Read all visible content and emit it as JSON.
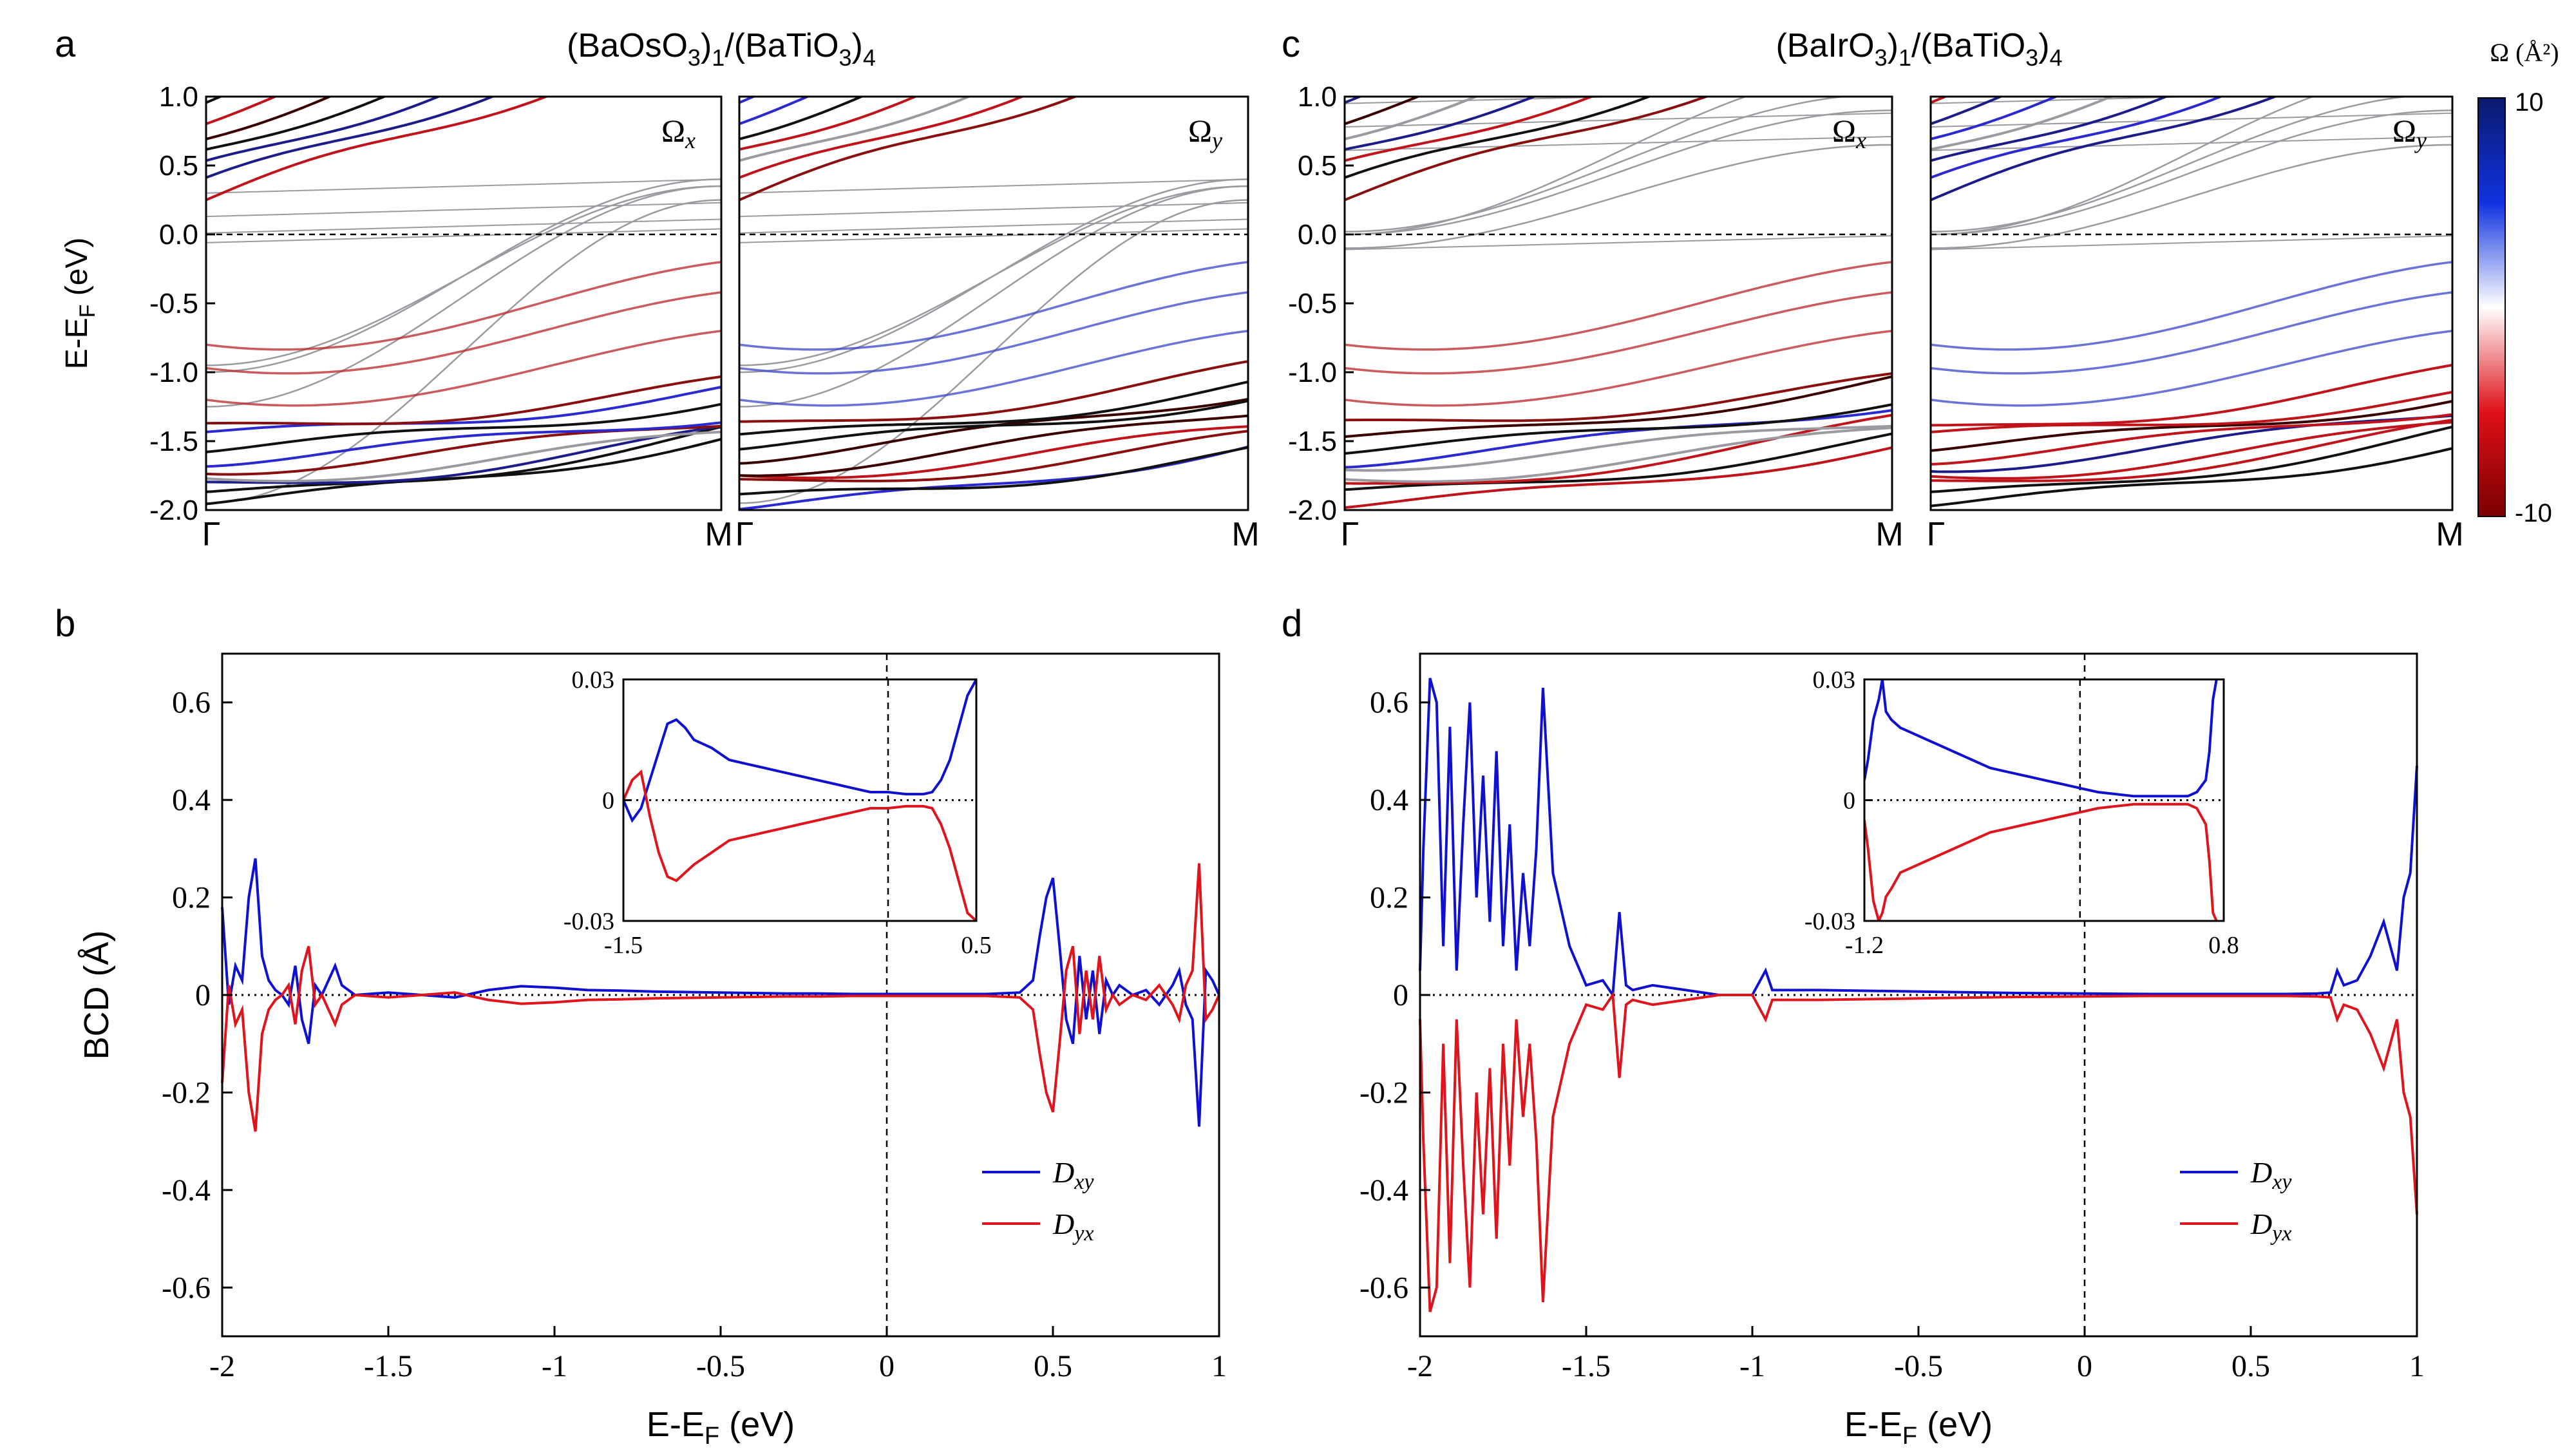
{
  "figure": {
    "panel_labels": [
      "a",
      "b",
      "c",
      "d"
    ],
    "title_a": {
      "base": "(BaOsO",
      "sub1": "3",
      "mid": ")",
      "sub2": "1",
      "rest": "/(BaTiO",
      "sub3": "3",
      "end": ")",
      "sub4": "4"
    },
    "title_c": {
      "base": "(BaIrO",
      "sub1": "3",
      "mid": ")",
      "sub2": "1",
      "rest": "/(BaTiO",
      "sub3": "3",
      "end": ")",
      "sub4": "4"
    },
    "colorbar": {
      "title": "Ω (Å²)",
      "max_label": "10",
      "min_label": "-10",
      "colors": [
        "#0b1a6e",
        "#1033e0",
        "#ffffff",
        "#e01018",
        "#7a0000"
      ]
    }
  },
  "chart_data": [
    {
      "id": "a-left",
      "type": "line",
      "panel": "a",
      "ylabel": "E-EF (eV)",
      "ylabel_main": "E-E",
      "ylabel_sub": "F",
      "ylabel_tail": " (eV)",
      "xticks": [
        "Γ",
        "M"
      ],
      "ylim": [
        -2.0,
        1.0
      ],
      "yticks": [
        1.0,
        0.5,
        0.0,
        -0.5,
        -1.0,
        -1.5,
        -2.0
      ],
      "ytick_labels": [
        "1.0",
        "0.5",
        "0.0",
        "-0.5",
        "-1.0",
        "-1.5",
        "-2.0"
      ],
      "annotation_main": "Ω",
      "annotation_sub": "x",
      "fermi_level": 0.0
    },
    {
      "id": "a-right",
      "type": "line",
      "panel": "a",
      "xticks": [
        "Γ",
        "M"
      ],
      "ylim": [
        -2.0,
        1.0
      ],
      "annotation_main": "Ω",
      "annotation_sub": "y",
      "fermi_level": 0.0
    },
    {
      "id": "c-left",
      "type": "line",
      "panel": "c",
      "xticks": [
        "Γ",
        "M"
      ],
      "ylim": [
        -2.0,
        1.0
      ],
      "yticks": [
        1.0,
        0.5,
        0.0,
        -0.5,
        -1.0,
        -1.5,
        -2.0
      ],
      "ytick_labels": [
        "1.0",
        "0.5",
        "0.0",
        "-0.5",
        "-1.0",
        "-1.5",
        "-2.0"
      ],
      "annotation_main": "Ω",
      "annotation_sub": "x",
      "fermi_level": 0.0
    },
    {
      "id": "c-right",
      "type": "line",
      "panel": "c",
      "xticks": [
        "Γ",
        "M"
      ],
      "ylim": [
        -2.0,
        1.0
      ],
      "annotation_main": "Ω",
      "annotation_sub": "y",
      "fermi_level": 0.0
    },
    {
      "id": "b",
      "type": "line",
      "panel": "b",
      "xlabel_main": "E-E",
      "xlabel_sub": "F",
      "xlabel_tail": " (eV)",
      "ylabel": "BCD (Å)",
      "xlim": [
        -2,
        1
      ],
      "ylim": [
        -0.7,
        0.7
      ],
      "xticks": [
        -2,
        -1.5,
        -1,
        -0.5,
        0,
        0.5,
        1
      ],
      "xtick_labels": [
        "-2",
        "-1.5",
        "-1",
        "-0.5",
        "0",
        "0.5",
        "1"
      ],
      "yticks": [
        0.6,
        0.4,
        0.2,
        0,
        -0.2,
        -0.4,
        -0.6
      ],
      "ytick_labels": [
        "0.6",
        "0.4",
        "0.2",
        "0",
        "-0.2",
        "-0.4",
        "-0.6"
      ],
      "legend": [
        {
          "main": "D",
          "sub": "xy",
          "color": "#1010d0"
        },
        {
          "main": "D",
          "sub": "yx",
          "color": "#e0141c"
        }
      ],
      "series": [
        {
          "name": "Dxy",
          "color": "#1010d0",
          "x": [
            -2.0,
            -1.98,
            -1.96,
            -1.94,
            -1.92,
            -1.9,
            -1.88,
            -1.86,
            -1.84,
            -1.82,
            -1.8,
            -1.78,
            -1.76,
            -1.74,
            -1.72,
            -1.7,
            -1.68,
            -1.66,
            -1.64,
            -1.6,
            -1.5,
            -1.4,
            -1.3,
            -1.2,
            -1.1,
            -1.0,
            -0.9,
            -0.8,
            -0.7,
            -0.6,
            -0.5,
            -0.4,
            -0.3,
            -0.2,
            -0.1,
            0.0,
            0.1,
            0.2,
            0.3,
            0.4,
            0.44,
            0.46,
            0.48,
            0.5,
            0.52,
            0.54,
            0.56,
            0.58,
            0.6,
            0.62,
            0.64,
            0.66,
            0.68,
            0.7,
            0.74,
            0.78,
            0.82,
            0.86,
            0.88,
            0.9,
            0.92,
            0.94,
            0.96,
            0.98,
            1.0
          ],
          "y": [
            0.18,
            -0.02,
            0.06,
            0.03,
            0.2,
            0.28,
            0.08,
            0.03,
            0.01,
            0.0,
            -0.02,
            0.06,
            -0.05,
            -0.1,
            0.02,
            0.0,
            0.03,
            0.06,
            0.02,
            0.0,
            0.005,
            0.0,
            -0.005,
            0.01,
            0.018,
            0.015,
            0.01,
            0.009,
            0.007,
            0.006,
            0.005,
            0.004,
            0.003,
            0.003,
            0.002,
            0.002,
            0.002,
            0.002,
            0.002,
            0.005,
            0.03,
            0.12,
            0.2,
            0.24,
            0.1,
            -0.05,
            -0.1,
            0.08,
            -0.05,
            0.05,
            -0.08,
            0.03,
            0.0,
            0.02,
            0.0,
            0.01,
            -0.02,
            0.02,
            0.05,
            -0.02,
            -0.05,
            -0.27,
            0.05,
            0.03,
            0.0
          ]
        },
        {
          "name": "Dyx",
          "color": "#e0141c",
          "x": [
            -2.0,
            -1.98,
            -1.96,
            -1.94,
            -1.92,
            -1.9,
            -1.88,
            -1.86,
            -1.84,
            -1.82,
            -1.8,
            -1.78,
            -1.76,
            -1.74,
            -1.72,
            -1.7,
            -1.68,
            -1.66,
            -1.64,
            -1.6,
            -1.5,
            -1.4,
            -1.3,
            -1.2,
            -1.1,
            -1.0,
            -0.9,
            -0.8,
            -0.7,
            -0.6,
            -0.5,
            -0.4,
            -0.3,
            -0.2,
            -0.1,
            0.0,
            0.1,
            0.2,
            0.3,
            0.4,
            0.44,
            0.46,
            0.48,
            0.5,
            0.52,
            0.54,
            0.56,
            0.58,
            0.6,
            0.62,
            0.64,
            0.66,
            0.68,
            0.7,
            0.74,
            0.78,
            0.82,
            0.86,
            0.88,
            0.9,
            0.92,
            0.94,
            0.96,
            0.98,
            1.0
          ],
          "y": [
            -0.18,
            0.02,
            -0.06,
            -0.03,
            -0.2,
            -0.28,
            -0.08,
            -0.03,
            -0.01,
            0.0,
            0.02,
            -0.06,
            0.05,
            0.1,
            -0.02,
            0.0,
            -0.03,
            -0.06,
            -0.02,
            0.0,
            -0.005,
            0.0,
            0.005,
            -0.01,
            -0.018,
            -0.015,
            -0.01,
            -0.009,
            -0.007,
            -0.006,
            -0.005,
            -0.004,
            -0.003,
            -0.003,
            -0.002,
            -0.002,
            -0.002,
            -0.002,
            -0.002,
            -0.005,
            -0.03,
            -0.12,
            -0.2,
            -0.24,
            -0.1,
            0.05,
            0.1,
            -0.08,
            0.05,
            -0.05,
            0.08,
            -0.03,
            0.0,
            -0.02,
            0.0,
            -0.01,
            0.02,
            -0.02,
            -0.05,
            0.02,
            0.05,
            0.27,
            -0.05,
            -0.03,
            0.0
          ]
        }
      ],
      "inset": {
        "xlim": [
          -1.5,
          0.5
        ],
        "ylim": [
          -0.03,
          0.03
        ],
        "xtick_labels": [
          "-1.5",
          "0.5"
        ],
        "ytick_labels": [
          "0.03",
          "0",
          "-0.03"
        ],
        "series": [
          {
            "name": "Dxy",
            "color": "#1010d0",
            "x": [
              -1.5,
              -1.45,
              -1.4,
              -1.35,
              -1.3,
              -1.25,
              -1.2,
              -1.15,
              -1.1,
              -1.0,
              -0.9,
              -0.8,
              -0.7,
              -0.6,
              -0.5,
              -0.4,
              -0.3,
              -0.2,
              -0.1,
              0.0,
              0.1,
              0.2,
              0.25,
              0.3,
              0.35,
              0.4,
              0.45,
              0.5
            ],
            "y": [
              0.0,
              -0.005,
              -0.002,
              0.005,
              0.012,
              0.019,
              0.02,
              0.018,
              0.015,
              0.013,
              0.01,
              0.009,
              0.008,
              0.007,
              0.006,
              0.005,
              0.004,
              0.003,
              0.002,
              0.002,
              0.0015,
              0.0015,
              0.002,
              0.005,
              0.01,
              0.018,
              0.026,
              0.03
            ]
          },
          {
            "name": "Dyx",
            "color": "#e0141c",
            "x": [
              -1.5,
              -1.45,
              -1.4,
              -1.35,
              -1.3,
              -1.25,
              -1.2,
              -1.15,
              -1.1,
              -1.0,
              -0.9,
              -0.8,
              -0.7,
              -0.6,
              -0.5,
              -0.4,
              -0.3,
              -0.2,
              -0.1,
              0.0,
              0.1,
              0.2,
              0.25,
              0.3,
              0.35,
              0.4,
              0.45,
              0.5
            ],
            "y": [
              0.0,
              0.005,
              0.007,
              -0.004,
              -0.013,
              -0.019,
              -0.02,
              -0.018,
              -0.016,
              -0.013,
              -0.01,
              -0.009,
              -0.008,
              -0.007,
              -0.006,
              -0.005,
              -0.004,
              -0.003,
              -0.002,
              -0.002,
              -0.0015,
              -0.0015,
              -0.002,
              -0.006,
              -0.012,
              -0.02,
              -0.028,
              -0.03
            ]
          }
        ]
      }
    },
    {
      "id": "d",
      "type": "line",
      "panel": "d",
      "xlabel_main": "E-E",
      "xlabel_sub": "F",
      "xlabel_tail": " (eV)",
      "xlim": [
        -2,
        1
      ],
      "ylim": [
        -0.7,
        0.7
      ],
      "xticks": [
        -2,
        -1.5,
        -1,
        -0.5,
        0,
        0.5,
        1
      ],
      "xtick_labels": [
        "-2",
        "-1.5",
        "-1",
        "-0.5",
        "0",
        "0.5",
        "1"
      ],
      "yticks": [
        0.6,
        0.4,
        0.2,
        0,
        -0.2,
        -0.4,
        -0.6
      ],
      "ytick_labels": [
        "0.6",
        "0.4",
        "0.2",
        "0",
        "-0.2",
        "-0.4",
        "-0.6"
      ],
      "legend": [
        {
          "main": "D",
          "sub": "xy",
          "color": "#1010d0"
        },
        {
          "main": "D",
          "sub": "yx",
          "color": "#e0141c"
        }
      ],
      "series": [
        {
          "name": "Dxy",
          "color": "#1010d0",
          "x": [
            -2.0,
            -1.99,
            -1.97,
            -1.95,
            -1.93,
            -1.91,
            -1.89,
            -1.87,
            -1.85,
            -1.83,
            -1.81,
            -1.79,
            -1.77,
            -1.75,
            -1.73,
            -1.71,
            -1.69,
            -1.67,
            -1.65,
            -1.63,
            -1.6,
            -1.55,
            -1.5,
            -1.45,
            -1.42,
            -1.4,
            -1.38,
            -1.36,
            -1.3,
            -1.2,
            -1.1,
            -1.0,
            -0.96,
            -0.94,
            -0.9,
            -0.8,
            -0.6,
            -0.4,
            -0.2,
            0.0,
            0.2,
            0.4,
            0.6,
            0.7,
            0.74,
            0.76,
            0.78,
            0.82,
            0.86,
            0.9,
            0.94,
            0.96,
            0.98,
            1.0
          ],
          "y": [
            0.05,
            0.3,
            0.65,
            0.6,
            0.1,
            0.55,
            0.05,
            0.35,
            0.6,
            0.2,
            0.45,
            0.15,
            0.5,
            0.1,
            0.35,
            0.05,
            0.25,
            0.1,
            0.3,
            0.63,
            0.25,
            0.1,
            0.02,
            0.03,
            0.0,
            0.17,
            0.02,
            0.01,
            0.02,
            0.01,
            0.0,
            0.0,
            0.05,
            0.01,
            0.01,
            0.01,
            0.008,
            0.006,
            0.004,
            0.003,
            0.002,
            0.002,
            0.002,
            0.003,
            0.005,
            0.05,
            0.02,
            0.03,
            0.08,
            0.15,
            0.05,
            0.2,
            0.25,
            0.47
          ]
        },
        {
          "name": "Dyx",
          "color": "#e0141c",
          "x": [
            -2.0,
            -1.99,
            -1.97,
            -1.95,
            -1.93,
            -1.91,
            -1.89,
            -1.87,
            -1.85,
            -1.83,
            -1.81,
            -1.79,
            -1.77,
            -1.75,
            -1.73,
            -1.71,
            -1.69,
            -1.67,
            -1.65,
            -1.63,
            -1.6,
            -1.55,
            -1.5,
            -1.45,
            -1.42,
            -1.4,
            -1.38,
            -1.36,
            -1.3,
            -1.2,
            -1.1,
            -1.0,
            -0.96,
            -0.94,
            -0.9,
            -0.8,
            -0.6,
            -0.4,
            -0.2,
            0.0,
            0.2,
            0.4,
            0.6,
            0.7,
            0.74,
            0.76,
            0.78,
            0.82,
            0.86,
            0.9,
            0.94,
            0.96,
            0.98,
            1.0
          ],
          "y": [
            -0.05,
            -0.3,
            -0.65,
            -0.6,
            -0.1,
            -0.55,
            -0.05,
            -0.35,
            -0.6,
            -0.2,
            -0.45,
            -0.15,
            -0.5,
            -0.1,
            -0.35,
            -0.05,
            -0.25,
            -0.1,
            -0.3,
            -0.63,
            -0.25,
            -0.1,
            -0.02,
            -0.03,
            0.0,
            -0.17,
            -0.02,
            -0.01,
            -0.02,
            -0.01,
            0.0,
            0.0,
            -0.05,
            -0.01,
            -0.01,
            -0.01,
            -0.008,
            -0.006,
            -0.004,
            -0.003,
            -0.002,
            -0.002,
            -0.002,
            -0.003,
            -0.005,
            -0.05,
            -0.02,
            -0.03,
            -0.08,
            -0.15,
            -0.05,
            -0.2,
            -0.25,
            -0.45
          ]
        }
      ],
      "inset": {
        "xlim": [
          -1.2,
          0.8
        ],
        "ylim": [
          -0.03,
          0.03
        ],
        "xtick_labels": [
          "-1.2",
          "0.8"
        ],
        "ytick_labels": [
          "0.03",
          "0",
          "-0.03"
        ],
        "series": [
          {
            "name": "Dxy",
            "color": "#1010d0",
            "x": [
              -1.2,
              -1.18,
              -1.15,
              -1.12,
              -1.1,
              -1.08,
              -1.05,
              -1.0,
              -0.9,
              -0.8,
              -0.7,
              -0.6,
              -0.5,
              -0.4,
              -0.3,
              -0.2,
              -0.1,
              0.0,
              0.1,
              0.2,
              0.3,
              0.4,
              0.5,
              0.6,
              0.65,
              0.7,
              0.72,
              0.74,
              0.76
            ],
            "y": [
              0.005,
              0.01,
              0.02,
              0.025,
              0.03,
              0.022,
              0.02,
              0.018,
              0.016,
              0.014,
              0.012,
              0.01,
              0.008,
              0.007,
              0.006,
              0.005,
              0.004,
              0.003,
              0.002,
              0.0015,
              0.001,
              0.001,
              0.001,
              0.001,
              0.002,
              0.005,
              0.012,
              0.025,
              0.03
            ]
          },
          {
            "name": "Dyx",
            "color": "#e0141c",
            "x": [
              -1.2,
              -1.18,
              -1.15,
              -1.12,
              -1.1,
              -1.08,
              -1.05,
              -1.0,
              -0.9,
              -0.8,
              -0.7,
              -0.6,
              -0.5,
              -0.4,
              -0.3,
              -0.2,
              -0.1,
              0.0,
              0.1,
              0.2,
              0.3,
              0.4,
              0.5,
              0.6,
              0.65,
              0.7,
              0.72,
              0.74,
              0.76
            ],
            "y": [
              -0.005,
              -0.012,
              -0.025,
              -0.03,
              -0.028,
              -0.024,
              -0.022,
              -0.018,
              -0.016,
              -0.014,
              -0.012,
              -0.01,
              -0.008,
              -0.007,
              -0.006,
              -0.005,
              -0.004,
              -0.003,
              -0.002,
              -0.0015,
              -0.001,
              -0.001,
              -0.001,
              -0.001,
              -0.002,
              -0.006,
              -0.015,
              -0.028,
              -0.03
            ]
          }
        ]
      }
    }
  ]
}
